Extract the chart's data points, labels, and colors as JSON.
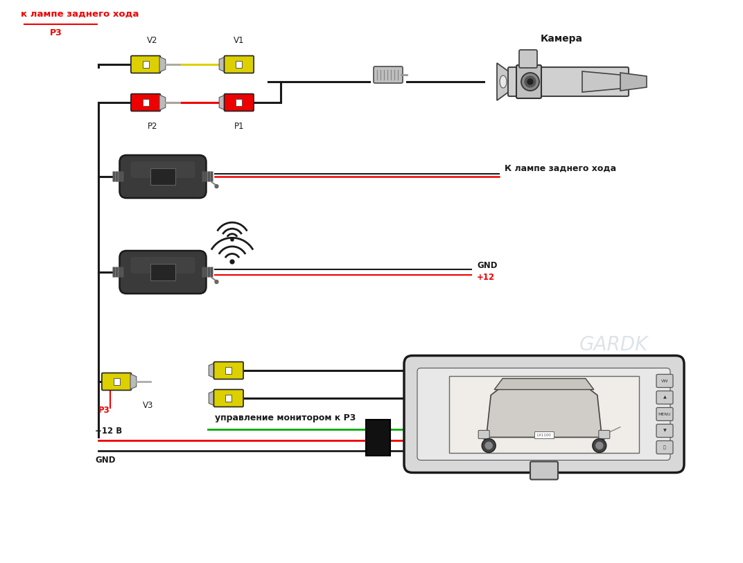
{
  "bg_color": "#ffffff",
  "text_color": "#1a1a1a",
  "red_color": "#ee0000",
  "green_color": "#00aa00",
  "yellow_color": "#ddd000",
  "wire_black": "#1a1a1a",
  "dark_gray": "#333333",
  "labels": {
    "camera": "Камера",
    "k_lampe_top": "к лампе заднего хода",
    "k_lampe_right": "К лампе заднего хода",
    "gnd": "GND",
    "plus12": "+12",
    "plus12v": "+12 В",
    "gnd_bot": "GND",
    "V1": "V1",
    "V2": "V2",
    "V3": "V3",
    "P1": "P1",
    "P2": "P2",
    "P3_top": "P3",
    "P3_bot": "P3",
    "upravlenie": "управление монитором к P3"
  }
}
